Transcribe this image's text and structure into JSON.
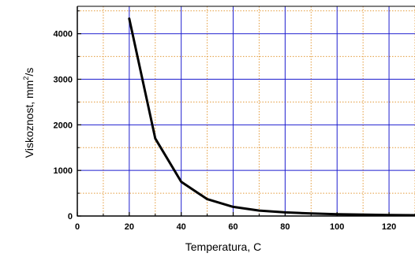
{
  "chart_data": {
    "type": "line",
    "title": "",
    "xlabel": "Temperatura, C",
    "ylabel": {
      "before": "Viskoznost, mm",
      "sup": "2",
      "after": "/s"
    },
    "xlim": [
      0,
      130
    ],
    "ylim": [
      0,
      4600
    ],
    "x_ticks": [
      0,
      20,
      40,
      60,
      80,
      100,
      120
    ],
    "y_ticks": [
      0,
      1000,
      2000,
      3000,
      4000
    ],
    "x_major_grid": [
      20,
      40,
      60,
      80,
      100,
      120
    ],
    "x_minor_grid": [
      10,
      30,
      50,
      70,
      90,
      110,
      130
    ],
    "y_major_grid": [
      1000,
      2000,
      3000,
      4000
    ],
    "y_minor_grid": [
      500,
      1500,
      2500,
      3500,
      4500
    ],
    "grid": true,
    "major_grid_color": "#1f1fcf",
    "minor_grid_color": "#e39a3a",
    "line_color": "#000000",
    "series": [
      {
        "x": [
          20,
          30,
          40,
          50,
          60,
          70,
          80,
          90,
          100,
          110,
          120,
          130
        ],
        "y": [
          4330,
          1700,
          750,
          370,
          200,
          120,
          80,
          55,
          40,
          30,
          22,
          18
        ]
      }
    ]
  }
}
